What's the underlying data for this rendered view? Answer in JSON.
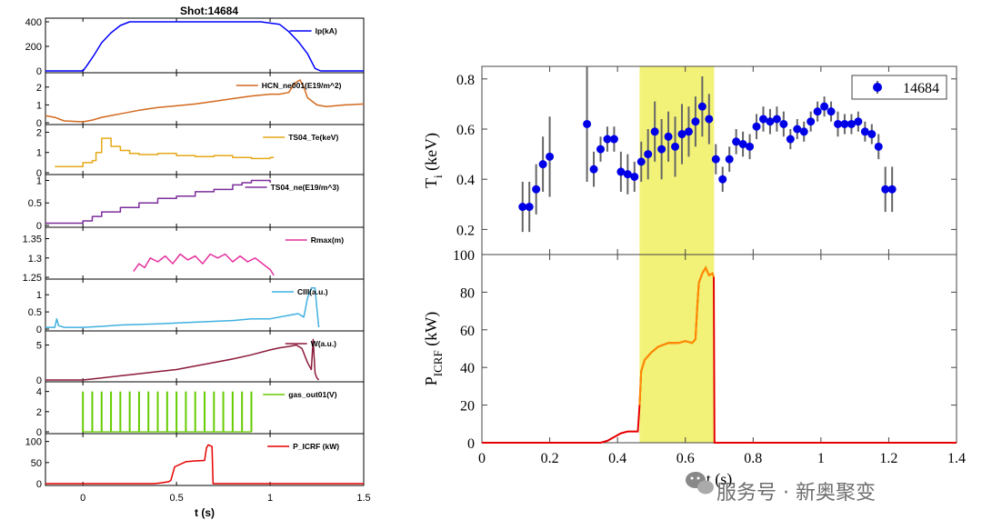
{
  "chart_data": [
    {
      "type": "line",
      "title": "Shot:14684",
      "xlabel": "t (s)",
      "xlim": [
        -0.2,
        1.5
      ],
      "xticks": [
        0,
        0.5,
        1,
        1.5
      ],
      "xtick_labels": [
        "0",
        "0.5",
        "1",
        "1.5"
      ],
      "panels": [
        {
          "name": "Ip(kA)",
          "color": "#0000ff",
          "ylim": [
            0,
            400
          ],
          "yticks": [
            0,
            200,
            400
          ],
          "ytick_labels": [
            "0",
            "200",
            "400"
          ],
          "style": "line",
          "x": [
            -0.2,
            0,
            0.02,
            0.06,
            0.1,
            0.15,
            0.2,
            0.25,
            0.3,
            0.4,
            0.6,
            0.8,
            0.95,
            1.05,
            1.1,
            1.15,
            1.2,
            1.24,
            1.27,
            1.5
          ],
          "y": [
            0,
            0,
            40,
            130,
            230,
            310,
            370,
            400,
            400,
            400,
            400,
            400,
            400,
            380,
            320,
            240,
            140,
            20,
            0,
            0
          ]
        },
        {
          "name": "HCN_ne001(E19/m^2)",
          "color": "#d2691e",
          "ylim": [
            0,
            2.6
          ],
          "yticks": [
            0,
            1,
            2
          ],
          "ytick_labels": [
            "0",
            "1",
            "2"
          ],
          "style": "line",
          "x": [
            -0.2,
            -0.15,
            -0.1,
            0,
            0.05,
            0.1,
            0.2,
            0.3,
            0.4,
            0.5,
            0.6,
            0.7,
            0.8,
            0.9,
            1.0,
            1.05,
            1.1,
            1.13,
            1.16,
            1.18,
            1.2,
            1.25,
            1.3,
            1.4,
            1.5
          ],
          "y": [
            0.4,
            0.3,
            0.1,
            0.05,
            0.15,
            0.3,
            0.5,
            0.7,
            0.85,
            0.95,
            1.05,
            1.2,
            1.35,
            1.5,
            1.6,
            1.6,
            1.7,
            2.2,
            2.4,
            2.0,
            1.4,
            1.0,
            0.9,
            1.0,
            1.05
          ]
        },
        {
          "name": "TS04_Te(keV)",
          "color": "#e6a817",
          "ylim": [
            0,
            2.2
          ],
          "yticks": [
            0,
            1,
            2
          ],
          "ytick_labels": [
            "0",
            "1",
            "2"
          ],
          "style": "step",
          "x": [
            -0.15,
            0,
            0.05,
            0.07,
            0.1,
            0.15,
            0.2,
            0.25,
            0.3,
            0.4,
            0.5,
            0.6,
            0.7,
            0.8,
            0.9,
            1.0,
            1.02
          ],
          "y": [
            0.3,
            0.5,
            0.6,
            1.0,
            1.7,
            1.3,
            1.1,
            0.95,
            0.9,
            0.95,
            0.85,
            0.8,
            0.85,
            0.75,
            0.7,
            0.75,
            0.75
          ]
        },
        {
          "name": "TS04_ne(E19/m^3)",
          "color": "#7b2d9b",
          "ylim": [
            0,
            1.05
          ],
          "yticks": [
            0,
            0.5,
            1
          ],
          "ytick_labels": [
            "0",
            "0.5",
            "1"
          ],
          "style": "step",
          "x": [
            -0.2,
            -0.1,
            0,
            0.05,
            0.1,
            0.2,
            0.3,
            0.4,
            0.5,
            0.6,
            0.7,
            0.8,
            0.85,
            0.9,
            0.95,
            1.0
          ],
          "y": [
            0.05,
            0.05,
            0.1,
            0.2,
            0.3,
            0.4,
            0.5,
            0.6,
            0.65,
            0.75,
            0.8,
            0.9,
            0.95,
            1.0,
            1.0,
            0.95
          ]
        },
        {
          "name": "Rmax(m)",
          "color": "#e6309e",
          "ylim": [
            1.25,
            1.37
          ],
          "yticks": [
            1.25,
            1.3,
            1.35
          ],
          "ytick_labels": [
            "1.25",
            "1.3",
            "1.35"
          ],
          "style": "line",
          "x": [
            0.27,
            0.3,
            0.33,
            0.36,
            0.4,
            0.44,
            0.48,
            0.52,
            0.56,
            0.6,
            0.64,
            0.68,
            0.72,
            0.76,
            0.8,
            0.84,
            0.88,
            0.92,
            0.96,
            1.0,
            1.02
          ],
          "y": [
            1.265,
            1.285,
            1.275,
            1.3,
            1.29,
            1.305,
            1.285,
            1.31,
            1.295,
            1.305,
            1.285,
            1.31,
            1.3,
            1.31,
            1.29,
            1.305,
            1.29,
            1.3,
            1.285,
            1.27,
            1.255
          ]
        },
        {
          "name": "CIII(a.u.)",
          "color": "#3fb0e0",
          "ylim": [
            0,
            1.35
          ],
          "yticks": [
            0,
            0.5,
            1
          ],
          "ytick_labels": [
            "0",
            "0.5",
            "1"
          ],
          "style": "line",
          "x": [
            -0.2,
            -0.15,
            -0.14,
            -0.13,
            -0.1,
            0,
            0.1,
            0.2,
            0.4,
            0.6,
            0.8,
            0.9,
            1.0,
            1.1,
            1.15,
            1.18,
            1.2,
            1.22,
            1.24,
            1.25,
            1.26
          ],
          "y": [
            0.05,
            0.05,
            0.3,
            0.1,
            0.05,
            0.05,
            0.08,
            0.12,
            0.15,
            0.2,
            0.25,
            0.3,
            0.3,
            0.4,
            0.45,
            0.35,
            0.9,
            1.2,
            1.2,
            0.6,
            0.05
          ]
        },
        {
          "name": "W(a.u.)",
          "color": "#8b1a3a",
          "ylim": [
            0,
            6.5
          ],
          "yticks": [
            0,
            5
          ],
          "ytick_labels": [
            "0",
            "5"
          ],
          "style": "line",
          "x": [
            -0.2,
            0,
            0.1,
            0.2,
            0.3,
            0.4,
            0.5,
            0.6,
            0.7,
            0.8,
            0.9,
            1.0,
            1.05,
            1.1,
            1.14,
            1.17,
            1.2,
            1.22,
            1.23,
            1.24,
            1.25,
            1.26
          ],
          "y": [
            0,
            0,
            0.3,
            0.6,
            0.9,
            1.2,
            1.5,
            2.0,
            2.5,
            3.0,
            3.6,
            4.3,
            4.6,
            4.8,
            5.0,
            4.5,
            2.5,
            1.5,
            5.8,
            1.0,
            0.3,
            0
          ]
        },
        {
          "name": "gas_out01(V)",
          "color": "#66cc00",
          "ylim": [
            0,
            4.6
          ],
          "yticks": [
            0,
            2,
            4
          ],
          "ytick_labels": [
            "0",
            "2",
            "4"
          ],
          "style": "pulses",
          "x": [
            0,
            0.05,
            0.1,
            0.15,
            0.2,
            0.25,
            0.3,
            0.35,
            0.4,
            0.45,
            0.5,
            0.55,
            0.6,
            0.65,
            0.7,
            0.75,
            0.8,
            0.85,
            0.9
          ],
          "y": [
            4,
            4,
            4,
            4,
            4,
            4,
            4,
            4,
            4,
            4,
            4,
            4,
            4,
            4,
            4,
            4,
            4,
            4,
            4
          ]
        },
        {
          "name": "P_ICRF (kW)",
          "color": "#e60000",
          "ylim": [
            0,
            110
          ],
          "yticks": [
            0,
            50,
            100
          ],
          "ytick_labels": [
            "0",
            "50",
            "100"
          ],
          "style": "line",
          "x": [
            -0.2,
            0.38,
            0.42,
            0.46,
            0.47,
            0.49,
            0.55,
            0.6,
            0.65,
            0.66,
            0.67,
            0.69,
            0.695,
            1.5
          ],
          "y": [
            0,
            0,
            2,
            5,
            8,
            40,
            52,
            54,
            55,
            85,
            92,
            88,
            0,
            0
          ]
        }
      ]
    },
    {
      "type": "scatter",
      "ylabel": "T_i (keV)",
      "ylabel_main": "T",
      "ylabel_sub": "i",
      "ylabel_tail": " (keV)",
      "ylim": [
        0.1,
        0.85
      ],
      "yticks": [
        0.2,
        0.4,
        0.6,
        0.8
      ],
      "ytick_labels": [
        "0.2",
        "0.4",
        "0.6",
        "0.8"
      ],
      "xlim": [
        0,
        1.4
      ],
      "legend": "top-right",
      "legend_label": "14684",
      "series": [
        {
          "name": "14684",
          "color": "#0000e6",
          "x": [
            0.12,
            0.14,
            0.16,
            0.18,
            0.2,
            0.31,
            0.33,
            0.35,
            0.37,
            0.39,
            0.41,
            0.43,
            0.45,
            0.47,
            0.49,
            0.51,
            0.53,
            0.55,
            0.57,
            0.59,
            0.61,
            0.63,
            0.65,
            0.67,
            0.69,
            0.71,
            0.73,
            0.75,
            0.77,
            0.79,
            0.81,
            0.83,
            0.85,
            0.87,
            0.89,
            0.91,
            0.93,
            0.95,
            0.97,
            0.99,
            1.01,
            1.03,
            1.05,
            1.07,
            1.09,
            1.11,
            1.13,
            1.15,
            1.17,
            1.19,
            1.21
          ],
          "y": [
            0.29,
            0.29,
            0.36,
            0.46,
            0.49,
            0.62,
            0.44,
            0.52,
            0.56,
            0.56,
            0.43,
            0.42,
            0.41,
            0.47,
            0.5,
            0.59,
            0.52,
            0.57,
            0.53,
            0.58,
            0.59,
            0.63,
            0.69,
            0.64,
            0.48,
            0.4,
            0.48,
            0.55,
            0.54,
            0.53,
            0.61,
            0.64,
            0.63,
            0.64,
            0.62,
            0.56,
            0.6,
            0.59,
            0.63,
            0.67,
            0.69,
            0.67,
            0.62,
            0.62,
            0.62,
            0.63,
            0.59,
            0.58,
            0.53,
            0.36,
            0.36
          ],
          "err": [
            0.1,
            0.1,
            0.1,
            0.11,
            0.16,
            0.23,
            0.07,
            0.05,
            0.05,
            0.05,
            0.08,
            0.08,
            0.06,
            0.08,
            0.1,
            0.12,
            0.12,
            0.1,
            0.12,
            0.12,
            0.1,
            0.1,
            0.12,
            0.1,
            0.06,
            0.05,
            0.05,
            0.05,
            0.05,
            0.05,
            0.05,
            0.05,
            0.05,
            0.05,
            0.05,
            0.04,
            0.04,
            0.04,
            0.04,
            0.04,
            0.04,
            0.04,
            0.05,
            0.04,
            0.04,
            0.04,
            0.04,
            0.04,
            0.05,
            0.09,
            0.09
          ]
        }
      ]
    },
    {
      "type": "line",
      "ylabel": "P_ICRF (kW)",
      "ylabel_main": "P",
      "ylabel_sub": "ICRF",
      "ylabel_tail": " (kW)",
      "xlabel": "t (s)",
      "xlim": [
        0,
        1.4
      ],
      "xticks": [
        0,
        0.2,
        0.4,
        0.6,
        0.8,
        1,
        1.2,
        1.4
      ],
      "xtick_labels": [
        "0",
        "0.2",
        "0.4",
        "0.6",
        "0.8",
        "1",
        "1.2",
        "1.4"
      ],
      "ylim": [
        0,
        100
      ],
      "yticks": [
        0,
        20,
        40,
        60,
        80,
        100
      ],
      "ytick_labels": [
        "0",
        "20",
        "40",
        "60",
        "80",
        "100"
      ],
      "shaded_interval": [
        0.465,
        0.685
      ],
      "shade_color": "#f0f060",
      "series": [
        {
          "color": "#e60000",
          "x": [
            0,
            0.35,
            0.37,
            0.39,
            0.41,
            0.43,
            0.45,
            0.46,
            0.465,
            0.47,
            0.48,
            0.5,
            0.52,
            0.55,
            0.58,
            0.6,
            0.62,
            0.63,
            0.635,
            0.64,
            0.65,
            0.66,
            0.67,
            0.68,
            0.684,
            0.686,
            0.69,
            1.4
          ],
          "y": [
            0,
            0,
            1,
            3,
            5,
            6,
            6,
            6,
            20,
            38,
            44,
            48,
            51,
            53,
            53,
            54,
            53,
            55,
            72,
            85,
            90,
            93,
            89,
            90,
            88,
            0,
            0,
            0
          ]
        }
      ]
    }
  ],
  "watermark": {
    "text": "服务号 · 新奥聚变",
    "icon": "wechat-icon"
  }
}
